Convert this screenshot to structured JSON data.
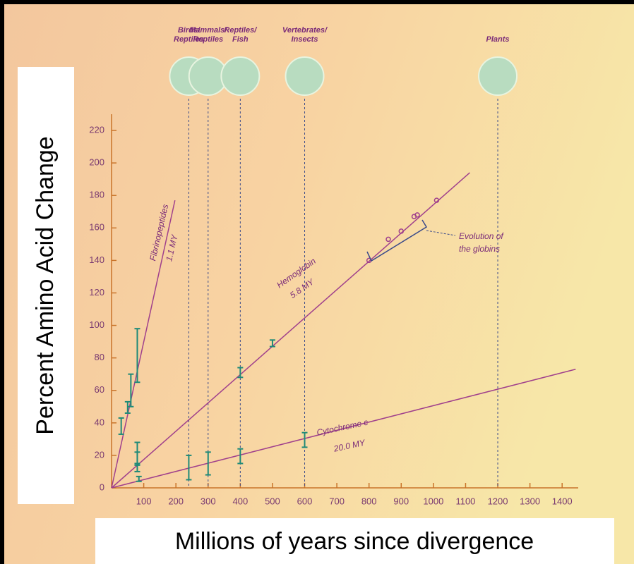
{
  "chart_data": {
    "type": "line",
    "x_label": "Millions of years since divergence",
    "y_label": "Percent Amino Acid Change",
    "xlim": [
      0,
      1450
    ],
    "ylim": [
      0,
      230
    ],
    "xticks": [
      100,
      200,
      300,
      400,
      500,
      600,
      700,
      800,
      900,
      1000,
      1100,
      1200,
      1300,
      1400
    ],
    "yticks": [
      0,
      20,
      40,
      60,
      80,
      100,
      120,
      140,
      160,
      180,
      200,
      220
    ],
    "series": [
      {
        "name": "Fibrinopeptides",
        "rate": "1.1 MY",
        "color": "#a0408c",
        "x": [
          0,
          197
        ],
        "values": [
          0,
          177
        ]
      },
      {
        "name": "Hemoglobin",
        "rate": "5.8 MY",
        "color": "#a0408c",
        "x": [
          0,
          1113
        ],
        "values": [
          0,
          194
        ]
      },
      {
        "name": "Cytochrome c",
        "rate": "20.0 MY",
        "color": "#a0408c",
        "x": [
          0,
          1442
        ],
        "values": [
          0,
          73
        ]
      }
    ],
    "measurements": {
      "color": "#1f8a78",
      "x": [
        30,
        50,
        60,
        80,
        80,
        80,
        80,
        85,
        240,
        300,
        400,
        600,
        400,
        500
      ],
      "low": [
        33,
        46,
        50,
        65,
        15,
        14,
        10,
        4,
        5,
        8,
        15,
        25,
        68,
        87
      ],
      "high": [
        43,
        53,
        70,
        98,
        28,
        22,
        14,
        7,
        20,
        22,
        24,
        34,
        74,
        91
      ]
    },
    "globins": {
      "label": [
        "Evolution of",
        "the globins"
      ],
      "color": "#a0408c",
      "x": [
        800,
        860,
        900,
        940,
        950,
        1010
      ],
      "values": [
        140,
        153,
        158,
        167,
        168,
        177
      ]
    },
    "divergences": [
      {
        "label": [
          "Birds/",
          "Reptiles"
        ],
        "x": 240
      },
      {
        "label": [
          "Mammals/",
          "Reptiles"
        ],
        "x": 300
      },
      {
        "label": [
          "Reptiles/",
          "Fish"
        ],
        "x": 400
      },
      {
        "label": [
          "Vertebrates/",
          "Insects"
        ],
        "x": 600
      },
      {
        "label": [
          "Plants"
        ],
        "x": 1200
      }
    ]
  }
}
